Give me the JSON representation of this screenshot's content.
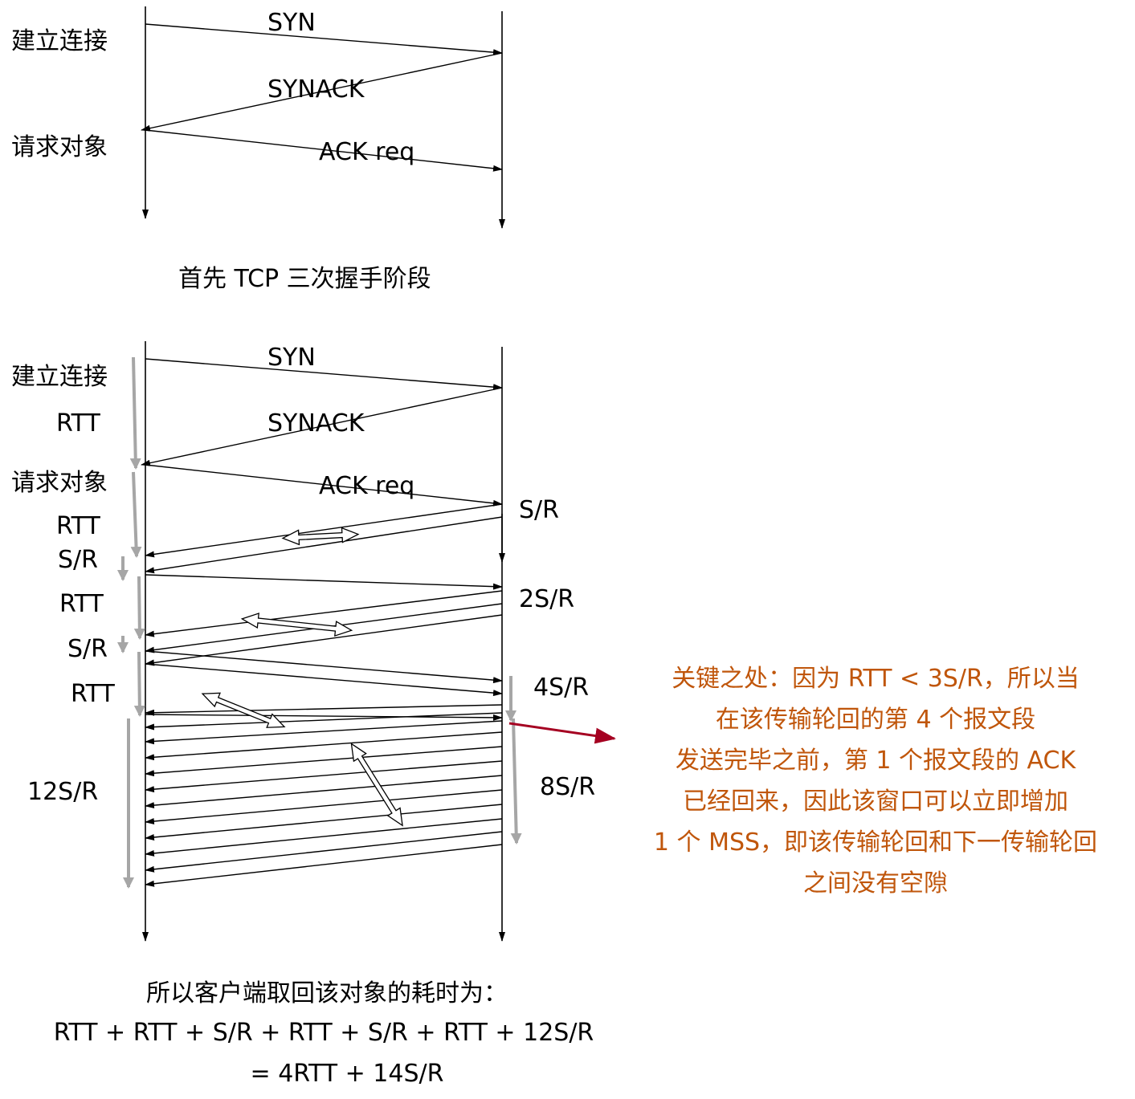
{
  "diagram1": {
    "labels": [
      "建立连接",
      "请求对象"
    ],
    "messages": [
      "SYN",
      "SYNACK",
      "ACK req"
    ],
    "caption": "首先 TCP 三次握手阶段"
  },
  "diagram2": {
    "messages": [
      "SYN",
      "SYNACK",
      "ACK req"
    ],
    "left_labels": [
      "建立连接",
      "RTT",
      "请求对象",
      "RTT",
      "S/R",
      "RTT",
      "S/R",
      "RTT",
      "12S/R"
    ],
    "right_labels": [
      "S/R",
      "2S/R",
      "4S/R",
      "8S/R"
    ]
  },
  "note": {
    "lines": [
      "关键之处：因为 RTT < 3S/R，所以当",
      "在该传输轮回的第 4 个报文段",
      "发送完毕之前，第 1 个报文段的 ACK",
      "已经回来，因此该窗口可以立即增加",
      "1 个 MSS，即该传输轮回和下一传输轮回",
      "之间没有空隙"
    ]
  },
  "formula": {
    "line1": "所以客户端取回该对象的耗时为：",
    "line2": "RTT + RTT + S/R + RTT + S/R + RTT + 12S/R",
    "line3": "= 4RTT + 14S/R"
  },
  "colors": {
    "line": "#000000",
    "interval_arrow": "#a6a6a6",
    "note_text": "#c0560b",
    "note_arrow": "#a50021"
  }
}
